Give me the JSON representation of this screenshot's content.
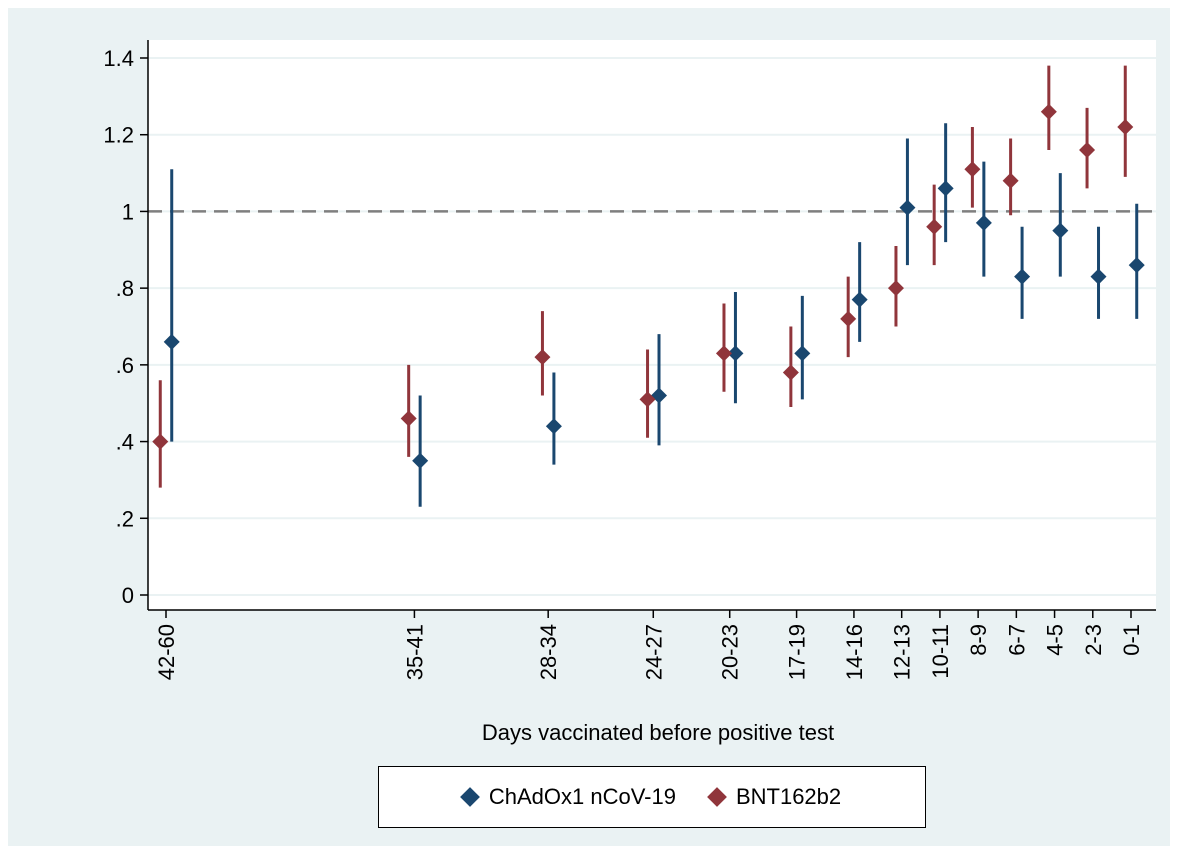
{
  "chart_data": {
    "type": "scatter",
    "title": "",
    "xlabel": "Days vaccinated before positive test",
    "ylabel": "",
    "ylim": [
      0,
      1.4
    ],
    "yticks": [
      {
        "value": 0,
        "label": "0"
      },
      {
        "value": 0.2,
        "label": ".2"
      },
      {
        "value": 0.4,
        "label": ".4"
      },
      {
        "value": 0.6,
        "label": ".6"
      },
      {
        "value": 0.8,
        "label": ".8"
      },
      {
        "value": 1.0,
        "label": "1"
      },
      {
        "value": 1.2,
        "label": "1.2"
      },
      {
        "value": 1.4,
        "label": "1.4"
      }
    ],
    "reference_line": 1.0,
    "grid": true,
    "categories": [
      "42-60",
      "35-41",
      "28-34",
      "24-27",
      "20-23",
      "17-19",
      "14-16",
      "12-13",
      "10-11",
      "8-9",
      "6-7",
      "4-5",
      "2-3",
      "0-1"
    ],
    "x_midpoints": [
      51,
      38,
      31,
      25.5,
      21.5,
      18,
      15,
      12.5,
      10.5,
      8.5,
      6.5,
      4.5,
      2.5,
      0.5
    ],
    "x_range": [
      51,
      0.5
    ],
    "series": [
      {
        "name": "ChAdOx1 nCoV-19",
        "color": "#1a476f",
        "marker": "diamond",
        "offset": 0.3,
        "values": [
          0.66,
          0.35,
          0.44,
          0.52,
          0.63,
          0.63,
          0.77,
          1.01,
          1.06,
          0.97,
          0.83,
          0.95,
          0.83,
          0.86
        ],
        "lower": [
          0.4,
          0.23,
          0.34,
          0.39,
          0.5,
          0.51,
          0.66,
          0.86,
          0.92,
          0.83,
          0.72,
          0.83,
          0.72,
          0.72
        ],
        "upper": [
          1.11,
          0.52,
          0.58,
          0.68,
          0.79,
          0.78,
          0.92,
          1.19,
          1.23,
          1.13,
          0.96,
          1.1,
          0.96,
          1.02
        ]
      },
      {
        "name": "BNT162b2",
        "color": "#90353b",
        "marker": "diamond",
        "offset": -0.3,
        "values": [
          0.4,
          0.46,
          0.62,
          0.51,
          0.63,
          0.58,
          0.72,
          0.8,
          0.96,
          1.11,
          1.08,
          1.26,
          1.16,
          1.22
        ],
        "lower": [
          0.28,
          0.36,
          0.52,
          0.41,
          0.53,
          0.49,
          0.62,
          0.7,
          0.86,
          1.01,
          0.99,
          1.16,
          1.06,
          1.09
        ],
        "upper": [
          0.56,
          0.6,
          0.74,
          0.64,
          0.76,
          0.7,
          0.83,
          0.91,
          1.07,
          1.22,
          1.19,
          1.38,
          1.27,
          1.38
        ]
      }
    ],
    "legend_position": "bottom"
  }
}
